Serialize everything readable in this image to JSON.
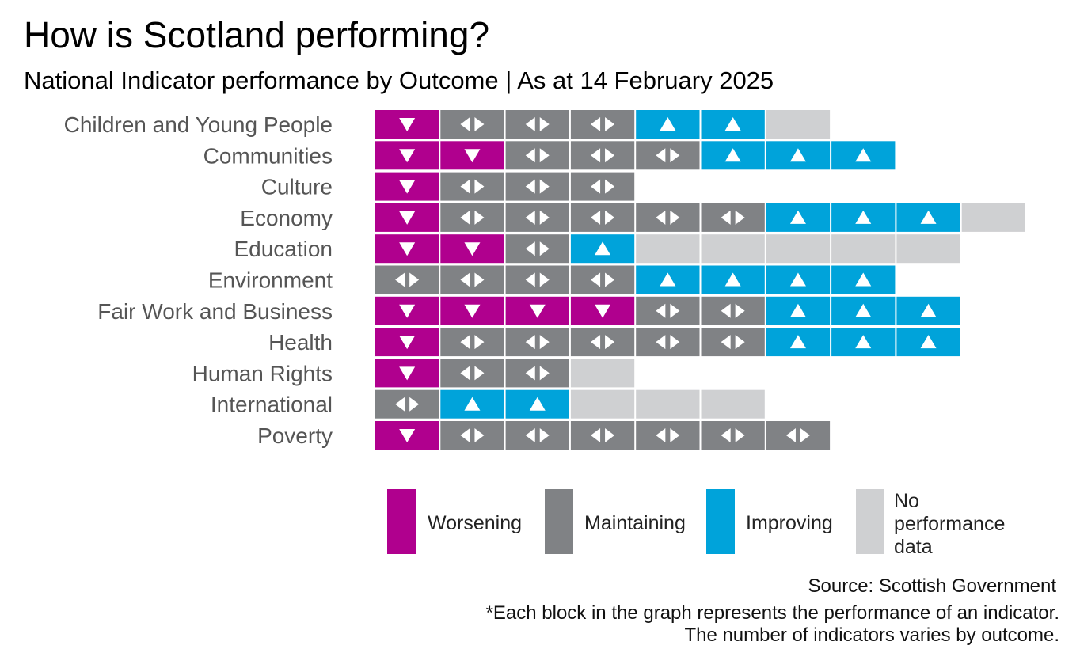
{
  "title": "How is Scotland performing?",
  "subtitle": "National Indicator performance by Outcome | As at 14 February 2025",
  "colors": {
    "worsening": "#b0008e",
    "maintaining": "#808285",
    "improving": "#00a3da",
    "no_data": "#cfd0d2"
  },
  "legend": {
    "items": [
      {
        "key": "worsening",
        "label": "Worsening"
      },
      {
        "key": "maintaining",
        "label": "Maintaining"
      },
      {
        "key": "improving",
        "label": "Improving"
      },
      {
        "key": "no_data",
        "label_lines": [
          "No",
          "performance",
          "data"
        ]
      }
    ]
  },
  "source": "Source: Scottish Government",
  "footnote_line1": "*Each block in the graph represents the performance of an indicator.",
  "footnote_line2": "The number of indicators varies by outcome.",
  "chart_data": {
    "type": "table",
    "categories": [
      "Children and Young People",
      "Communities",
      "Culture",
      "Economy",
      "Education",
      "Environment",
      "Fair Work and Business",
      "Health",
      "Human Rights",
      "International",
      "Poverty"
    ],
    "series": [
      {
        "key": "worsening",
        "values": [
          1,
          2,
          1,
          1,
          2,
          0,
          4,
          1,
          1,
          0,
          1
        ]
      },
      {
        "key": "maintaining",
        "values": [
          3,
          3,
          3,
          5,
          1,
          4,
          2,
          5,
          2,
          1,
          6
        ]
      },
      {
        "key": "improving",
        "values": [
          2,
          3,
          0,
          3,
          1,
          4,
          3,
          3,
          0,
          2,
          0
        ]
      },
      {
        "key": "no_data",
        "values": [
          1,
          0,
          0,
          1,
          5,
          0,
          0,
          0,
          1,
          3,
          0
        ]
      }
    ],
    "icons": {
      "worsening": "triangle-down-icon",
      "maintaining": "left-right-arrows-icon",
      "improving": "triangle-up-icon",
      "no_data": ""
    }
  }
}
